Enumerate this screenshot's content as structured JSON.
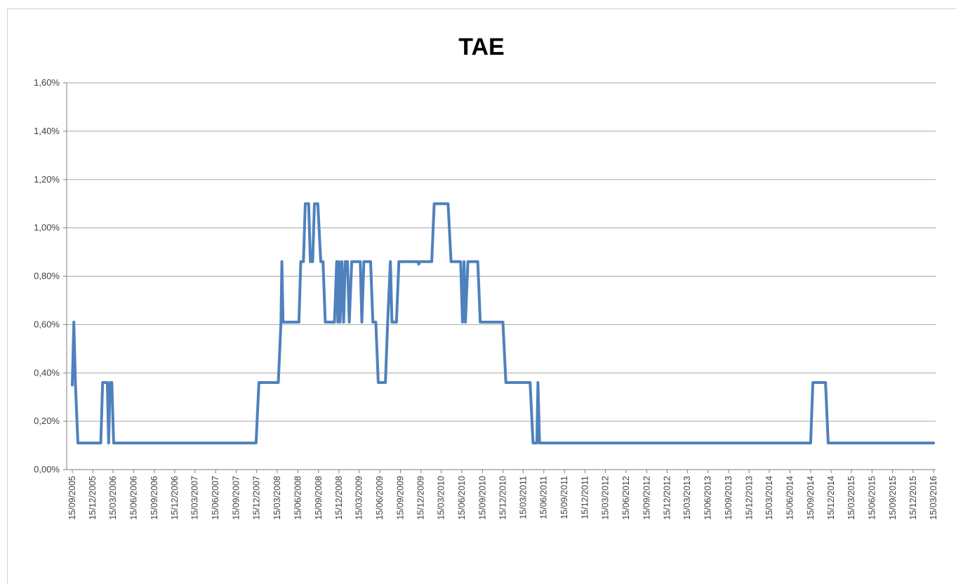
{
  "chart_data": {
    "type": "line",
    "title": "TAE",
    "xlabel": "",
    "ylabel": "",
    "ylim": [
      0,
      0.016
    ],
    "y_ticks": [
      "0,00%",
      "0,20%",
      "0,40%",
      "0,60%",
      "0,80%",
      "1,00%",
      "1,20%",
      "1,40%",
      "1,60%"
    ],
    "x_tick_labels": [
      "15/09/2005",
      "15/12/2005",
      "15/03/2006",
      "15/06/2006",
      "15/09/2006",
      "15/12/2006",
      "15/03/2007",
      "15/06/2007",
      "15/09/2007",
      "15/12/2007",
      "15/03/2008",
      "15/06/2008",
      "15/09/2008",
      "15/12/2008",
      "15/03/2009",
      "15/06/2009",
      "15/09/2009",
      "15/12/2009",
      "15/03/2010",
      "15/06/2010",
      "15/09/2010",
      "15/12/2010",
      "15/03/2011",
      "15/06/2011",
      "15/09/2011",
      "15/12/2011",
      "15/03/2012",
      "15/06/2012",
      "15/09/2012",
      "15/12/2012",
      "15/03/2013",
      "15/06/2013",
      "15/09/2013",
      "15/12/2013",
      "15/03/2014",
      "15/06/2014",
      "15/09/2014",
      "15/12/2014",
      "15/03/2015",
      "15/06/2015",
      "15/09/2015",
      "15/12/2015",
      "15/03/2016"
    ],
    "grid": true,
    "legend": "none",
    "series": [
      {
        "color": "#4f81bd",
        "points": [
          [
            "2005-09-15",
            0.0035
          ],
          [
            "2005-09-22",
            0.0061
          ],
          [
            "2005-09-29",
            0.0035
          ],
          [
            "2005-10-10",
            0.0011
          ],
          [
            "2006-01-20",
            0.0011
          ],
          [
            "2006-01-28",
            0.0036
          ],
          [
            "2006-02-18",
            0.0036
          ],
          [
            "2006-02-24",
            0.0011
          ],
          [
            "2006-03-02",
            0.0036
          ],
          [
            "2006-03-10",
            0.0036
          ],
          [
            "2006-03-18",
            0.0011
          ],
          [
            "2007-12-12",
            0.0011
          ],
          [
            "2007-12-25",
            0.0036
          ],
          [
            "2008-03-20",
            0.0036
          ],
          [
            "2008-04-01",
            0.0061
          ],
          [
            "2008-04-05",
            0.0086
          ],
          [
            "2008-04-10",
            0.0061
          ],
          [
            "2008-06-20",
            0.0061
          ],
          [
            "2008-06-28",
            0.0086
          ],
          [
            "2008-07-10",
            0.0086
          ],
          [
            "2008-07-18",
            0.011
          ],
          [
            "2008-08-02",
            0.011
          ],
          [
            "2008-08-10",
            0.0086
          ],
          [
            "2008-08-20",
            0.0086
          ],
          [
            "2008-08-28",
            0.011
          ],
          [
            "2008-09-12",
            0.011
          ],
          [
            "2008-09-25",
            0.0086
          ],
          [
            "2008-10-05",
            0.0086
          ],
          [
            "2008-10-15",
            0.0061
          ],
          [
            "2008-11-25",
            0.0061
          ],
          [
            "2008-12-05",
            0.0086
          ],
          [
            "2008-12-10",
            0.0061
          ],
          [
            "2008-12-15",
            0.0086
          ],
          [
            "2008-12-20",
            0.0061
          ],
          [
            "2008-12-28",
            0.0086
          ],
          [
            "2009-01-05",
            0.0061
          ],
          [
            "2009-01-12",
            0.0086
          ],
          [
            "2009-01-22",
            0.0086
          ],
          [
            "2009-01-30",
            0.0061
          ],
          [
            "2009-02-10",
            0.0086
          ],
          [
            "2009-03-20",
            0.0086
          ],
          [
            "2009-03-27",
            0.0061
          ],
          [
            "2009-04-05",
            0.0086
          ],
          [
            "2009-05-05",
            0.0086
          ],
          [
            "2009-05-15",
            0.0061
          ],
          [
            "2009-05-28",
            0.0061
          ],
          [
            "2009-06-08",
            0.0036
          ],
          [
            "2009-07-10",
            0.0036
          ],
          [
            "2009-07-20",
            0.0061
          ],
          [
            "2009-08-01",
            0.0086
          ],
          [
            "2009-08-08",
            0.0061
          ],
          [
            "2009-08-28",
            0.0061
          ],
          [
            "2009-09-08",
            0.0086
          ],
          [
            "2009-12-01",
            0.0086
          ],
          [
            "2009-12-05",
            0.0085
          ],
          [
            "2009-12-10",
            0.0086
          ],
          [
            "2010-02-01",
            0.0086
          ],
          [
            "2010-02-12",
            0.011
          ],
          [
            "2010-04-15",
            0.011
          ],
          [
            "2010-04-28",
            0.0086
          ],
          [
            "2010-06-10",
            0.0086
          ],
          [
            "2010-06-18",
            0.0061
          ],
          [
            "2010-06-25",
            0.0086
          ],
          [
            "2010-07-01",
            0.0061
          ],
          [
            "2010-07-12",
            0.0086
          ],
          [
            "2010-08-25",
            0.0086
          ],
          [
            "2010-09-05",
            0.0061
          ],
          [
            "2010-12-15",
            0.0061
          ],
          [
            "2010-12-28",
            0.0036
          ],
          [
            "2011-04-15",
            0.0036
          ],
          [
            "2011-04-28",
            0.0011
          ],
          [
            "2011-05-15",
            0.0011
          ],
          [
            "2011-05-20",
            0.0036
          ],
          [
            "2011-05-27",
            0.0011
          ],
          [
            "2014-09-15",
            0.0011
          ],
          [
            "2014-09-25",
            0.0036
          ],
          [
            "2014-11-20",
            0.0036
          ],
          [
            "2014-12-02",
            0.0011
          ],
          [
            "2016-03-15",
            0.0011
          ]
        ]
      }
    ]
  }
}
